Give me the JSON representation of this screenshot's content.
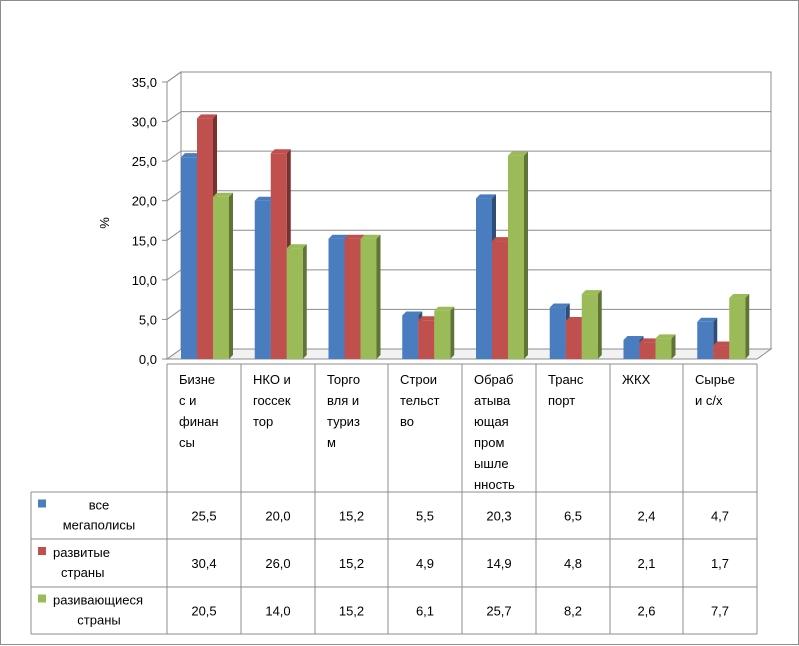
{
  "chart_data": {
    "type": "bar",
    "title": "",
    "xlabel": "",
    "ylabel": "%",
    "ylim": [
      0,
      35
    ],
    "yticks": [
      "0,0",
      "5,0",
      "10,0",
      "15,0",
      "20,0",
      "25,0",
      "30,0",
      "35,0"
    ],
    "grid": true,
    "legend": "data-table",
    "categories": [
      [
        "Бизне",
        "с и",
        "финан",
        "сы"
      ],
      [
        "НКО и",
        "госсек",
        "тор"
      ],
      [
        "Торго",
        "вля и",
        "туриз",
        "м"
      ],
      [
        "Строи",
        "тельст",
        "во"
      ],
      [
        "Обраб",
        "атыва",
        "ющая",
        "пром",
        "ышле",
        "нность"
      ],
      [
        "Транс",
        "порт"
      ],
      [
        "ЖКХ"
      ],
      [
        "Сырье",
        "и с/х"
      ]
    ],
    "series": [
      {
        "name": [
          "все",
          "мегаполисы"
        ],
        "color": "#4a7cc0",
        "values": [
          25.5,
          20.0,
          15.2,
          5.5,
          20.3,
          6.5,
          2.4,
          4.7
        ],
        "labels": [
          "25,5",
          "20,0",
          "15,2",
          "5,5",
          "20,3",
          "6,5",
          "2,4",
          "4,7"
        ]
      },
      {
        "name": [
          "развитые",
          "страны"
        ],
        "color": "#c0504d",
        "values": [
          30.4,
          26.0,
          15.2,
          4.9,
          14.9,
          4.8,
          2.1,
          1.7
        ],
        "labels": [
          "30,4",
          "26,0",
          "15,2",
          "4,9",
          "14,9",
          "4,8",
          "2,1",
          "1,7"
        ]
      },
      {
        "name": [
          "разивающиеся",
          "страны"
        ],
        "color": "#9bbb59",
        "values": [
          20.5,
          14.0,
          15.2,
          6.1,
          25.7,
          8.2,
          2.6,
          7.7
        ],
        "labels": [
          "20,5",
          "14,0",
          "15,2",
          "6,1",
          "25,7",
          "8,2",
          "2,6",
          "7,7"
        ]
      }
    ]
  }
}
